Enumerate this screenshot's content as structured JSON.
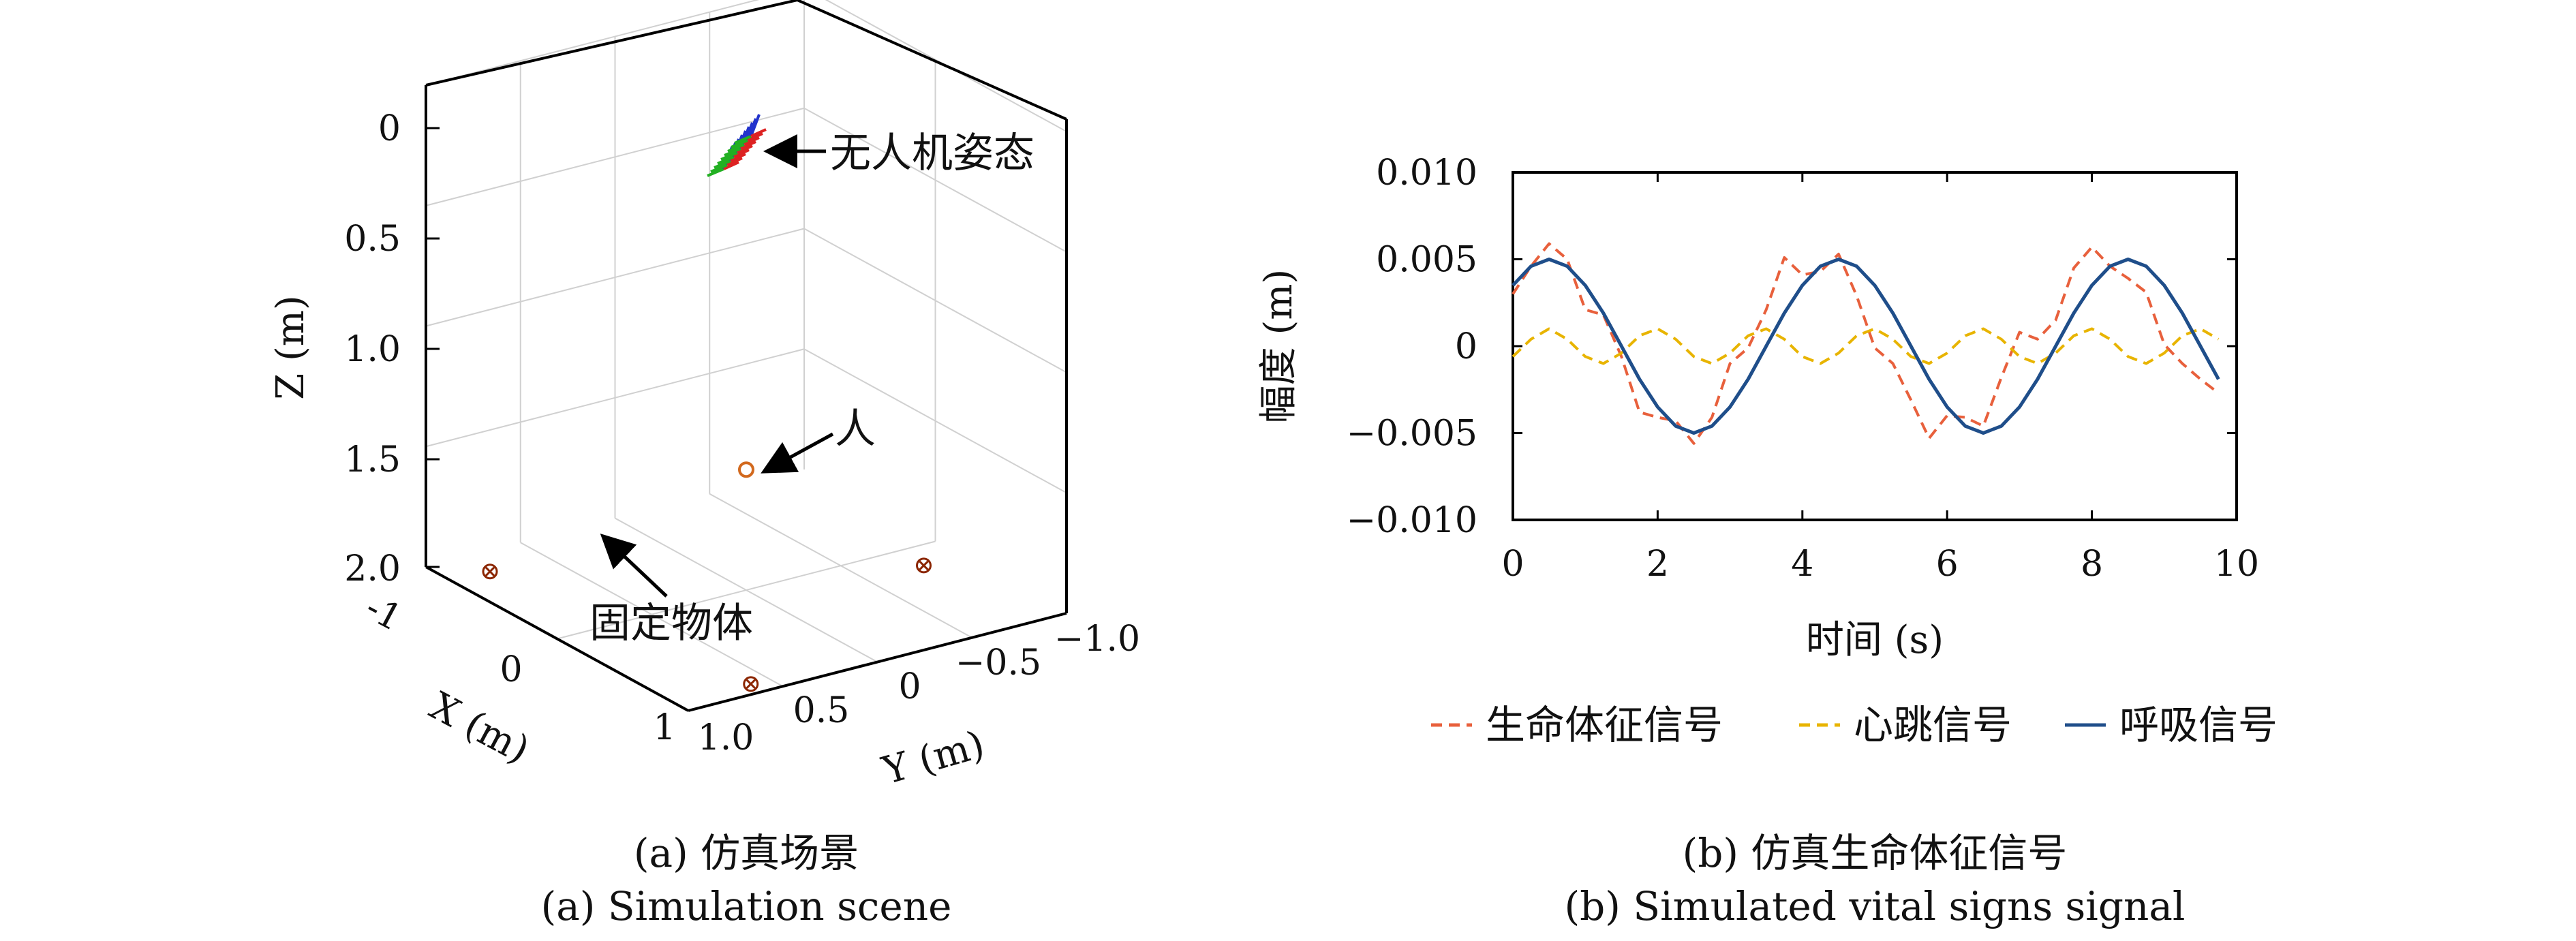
{
  "panel_a": {
    "caption_cn": "(a) 仿真场景",
    "caption_en": "(a) Simulation scene",
    "annotations": {
      "uav": "无人机姿态",
      "person": "人",
      "objects": "固定物体"
    }
  },
  "panel_b": {
    "caption_cn": "(b) 仿真生命体征信号",
    "caption_en": "(b) Simulated vital signs signal"
  },
  "chart_data": [
    {
      "type": "scatter",
      "projection": "3d",
      "xlabel": "X (m)",
      "ylabel": "Y (m)",
      "zlabel": "Z (m)",
      "x_ticks": [
        "-1",
        "0",
        "1"
      ],
      "y_ticks": [
        "1.0",
        "0.5",
        "0",
        "−0.5",
        "−1.0"
      ],
      "z_ticks": [
        "0",
        "0.5",
        "1.0",
        "1.5",
        "2.0"
      ],
      "xlim": [
        -1,
        1
      ],
      "ylim": [
        1.0,
        -1.0
      ],
      "zlim": [
        0,
        2.0
      ],
      "z_reversed": true,
      "grid": true,
      "series": [
        {
          "marker": "circle",
          "color": "#d2691e",
          "points": [
            {
              "x": 0.0,
              "y": 0.0,
              "z": 1.5
            }
          ]
        },
        {
          "marker": "circled-x",
          "color": "#8b2500",
          "points": [
            {
              "x": -0.8,
              "y": 0.8,
              "z": 2.0
            },
            {
              "x": 0.9,
              "y": 0.6,
              "z": 2.0
            },
            {
              "x": 0.2,
              "y": -0.8,
              "z": 2.0
            }
          ]
        }
      ]
    },
    {
      "type": "line",
      "xlabel": "时间 (s)",
      "ylabel": "幅度 (m)",
      "xlim": [
        0,
        10
      ],
      "ylim": [
        -0.01,
        0.01
      ],
      "x_ticks": [
        0,
        2,
        4,
        6,
        8,
        10
      ],
      "y_ticks": [
        0.01,
        0.005,
        0,
        -0.005,
        -0.01
      ],
      "y_tick_labels": [
        "0.010",
        "0.005",
        "0",
        "−0.005",
        "−0.010"
      ],
      "grid": false,
      "legend_position": "bottom",
      "x": [
        0,
        0.25,
        0.5,
        0.75,
        1.0,
        1.25,
        1.5,
        1.75,
        2.0,
        2.25,
        2.5,
        2.75,
        3.0,
        3.25,
        3.5,
        3.75,
        4.0,
        4.25,
        4.5,
        4.75,
        5.0,
        5.25,
        5.5,
        5.75,
        6.0,
        6.25,
        6.5,
        6.75,
        7.0,
        7.25,
        7.5,
        7.75,
        8.0,
        8.25,
        8.5,
        8.75,
        9.0,
        9.25,
        9.5,
        9.75
      ],
      "series": [
        {
          "name": "生命体征信号",
          "color": "#e8603c",
          "dash": "dashed",
          "values": [
            0.003,
            0.0046,
            0.0059,
            0.005,
            0.0021,
            0.0018,
            -0.0006,
            -0.0038,
            -0.0041,
            -0.0043,
            -0.0056,
            -0.0041,
            -0.001,
            -0.0001,
            0.0021,
            0.0051,
            0.0041,
            0.0043,
            0.0053,
            0.0029,
            -0.0001,
            -0.001,
            -0.0031,
            -0.0053,
            -0.004,
            -0.0041,
            -0.0046,
            -0.0018,
            0.0008,
            0.0004,
            0.0015,
            0.0045,
            0.0057,
            0.0046,
            0.0039,
            0.0031,
            0.0001,
            -0.001,
            -0.0019,
            -0.0027
          ]
        },
        {
          "name": "心跳信号",
          "color": "#e8b400",
          "dash": "dashed",
          "values": [
            -0.0006,
            0.0004,
            0.001,
            0.0004,
            -0.0006,
            -0.001,
            -0.0004,
            0.0006,
            0.001,
            0.0004,
            -0.0006,
            -0.001,
            -0.0004,
            0.0006,
            0.001,
            0.0004,
            -0.0006,
            -0.001,
            -0.0004,
            0.0006,
            0.001,
            0.0004,
            -0.0006,
            -0.001,
            -0.0004,
            0.0006,
            0.001,
            0.0004,
            -0.0006,
            -0.001,
            -0.0004,
            0.0006,
            0.001,
            0.0004,
            -0.0006,
            -0.001,
            -0.0004,
            0.0006,
            0.001,
            0.0004
          ]
        },
        {
          "name": "呼吸信号",
          "color": "#1f4e8a",
          "dash": "solid",
          "values": [
            0.0035,
            0.0046,
            0.005,
            0.0046,
            0.0035,
            0.0019,
            0.0,
            -0.0019,
            -0.0035,
            -0.0046,
            -0.005,
            -0.0046,
            -0.0035,
            -0.0019,
            0.0,
            0.0019,
            0.0035,
            0.0046,
            0.005,
            0.0046,
            0.0035,
            0.0019,
            0.0,
            -0.0019,
            -0.0035,
            -0.0046,
            -0.005,
            -0.0046,
            -0.0035,
            -0.0019,
            0.0,
            0.0019,
            0.0035,
            0.0046,
            0.005,
            0.0046,
            0.0035,
            0.0019,
            0.0,
            -0.0019
          ]
        }
      ]
    }
  ]
}
